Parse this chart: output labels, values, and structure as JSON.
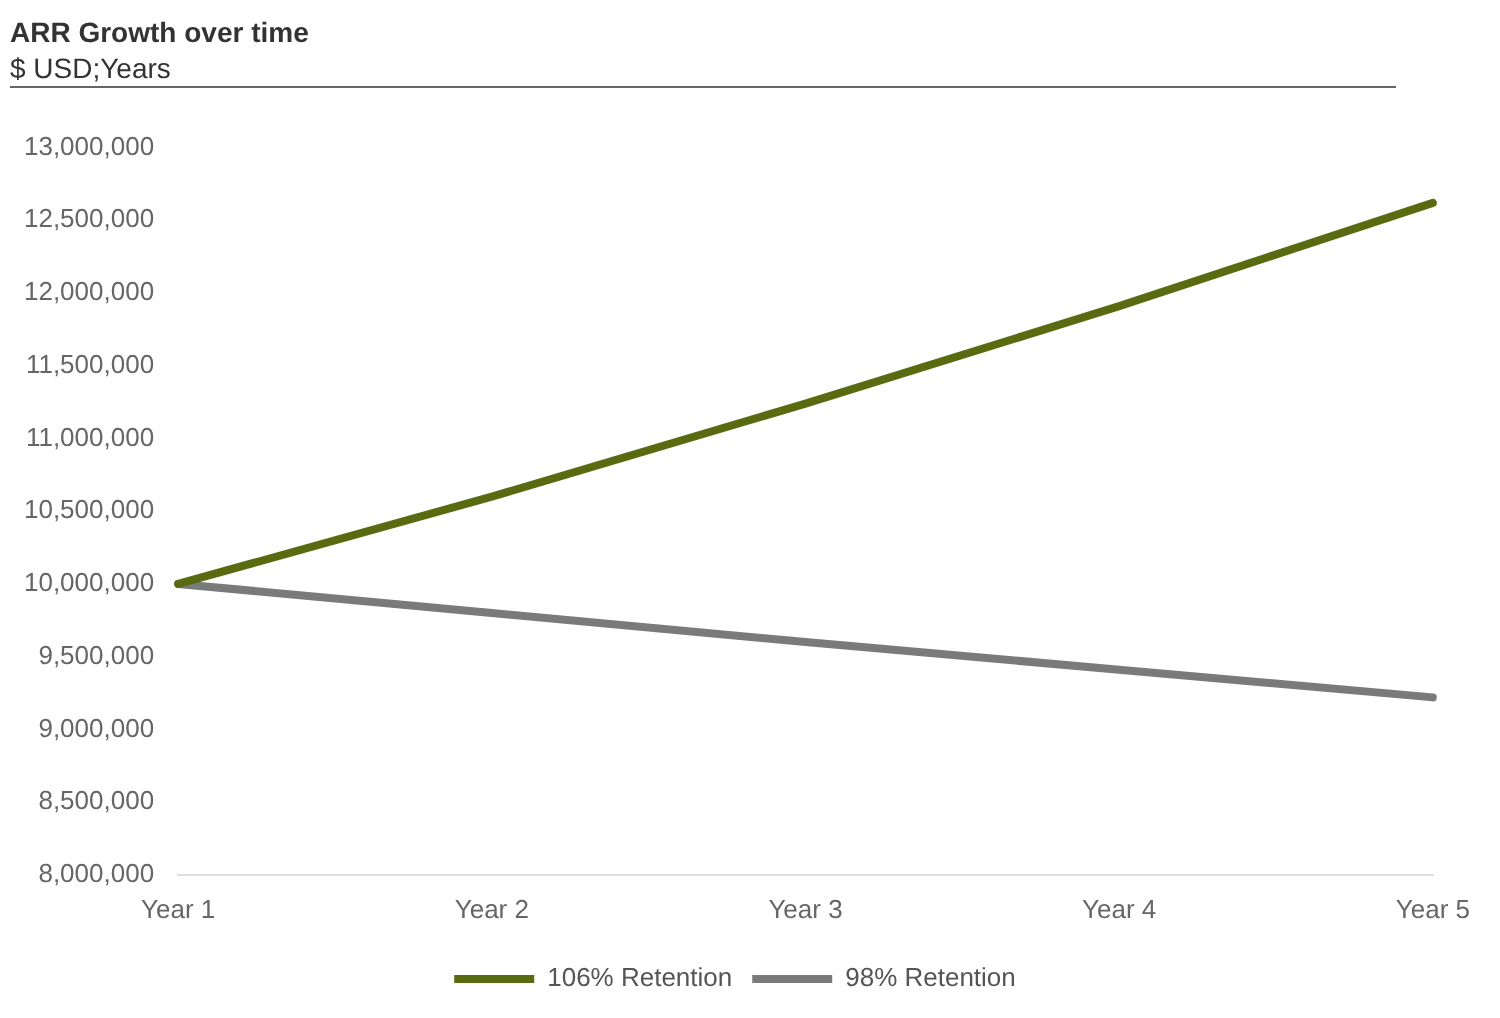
{
  "chart_data": {
    "type": "line",
    "title": "ARR Growth over time",
    "subtitle": "$ USD;Years",
    "categories": [
      "Year 1",
      "Year 2",
      "Year 3",
      "Year 4",
      "Year 5"
    ],
    "series": [
      {
        "name": "106% Retention",
        "color": "#5a6a10",
        "values": [
          10000000,
          10600000,
          11240000,
          11910000,
          12620000
        ]
      },
      {
        "name": "98% Retention",
        "color": "#7a7a7a",
        "values": [
          10000000,
          9800000,
          9600000,
          9410000,
          9220000
        ]
      }
    ],
    "ylim": [
      8000000,
      13000000
    ],
    "yticks": [
      {
        "value": 8000000,
        "label": "8,000,000"
      },
      {
        "value": 8500000,
        "label": "8,500,000"
      },
      {
        "value": 9000000,
        "label": "9,000,000"
      },
      {
        "value": 9500000,
        "label": "9,500,000"
      },
      {
        "value": 10000000,
        "label": "10,000,000"
      },
      {
        "value": 10500000,
        "label": "10,500,000"
      },
      {
        "value": 11000000,
        "label": "11,000,000"
      },
      {
        "value": 11500000,
        "label": "11,500,000"
      },
      {
        "value": 12000000,
        "label": "12,000,000"
      },
      {
        "value": 12500000,
        "label": "12,500,000"
      },
      {
        "value": 13000000,
        "label": "13,000,000"
      }
    ],
    "grid": false,
    "legend": "bottom",
    "marker": "none",
    "line_style": "solid"
  }
}
